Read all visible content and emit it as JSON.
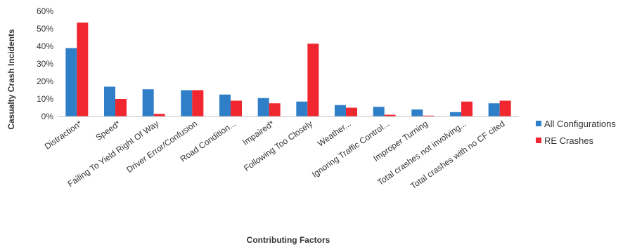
{
  "chart_data": {
    "type": "bar",
    "categories": [
      "Distraction*",
      "Speed*",
      "Failing To Yield Right Of Way",
      "Driver Error/Confusion",
      "Road Condition...",
      "Impaired*",
      "Following Too Closely",
      "Weather...",
      "Ignoring Traffic Control...",
      "Improper Turning",
      "Total crashes not involving...",
      "Total crashes with no CF cited"
    ],
    "series": [
      {
        "name": "All Configurations",
        "color": "#2f7fc8",
        "values": [
          39,
          17,
          15.5,
          15,
          12.5,
          10.5,
          8.5,
          6.5,
          5.5,
          4,
          2.5,
          7.5
        ]
      },
      {
        "name": "RE Crashes",
        "color": "#f0272f",
        "values": [
          53.5,
          10,
          1.5,
          15,
          9,
          7.5,
          41.5,
          5,
          1,
          0.5,
          8.5,
          9
        ]
      }
    ],
    "yticks": [
      "0%",
      "10%",
      "20%",
      "30%",
      "40%",
      "50%",
      "60%"
    ],
    "ylim": [
      0,
      60
    ],
    "xlabel": "Contributing Factors",
    "ylabel": "Casualty Crash Incidents",
    "legend_position": "right",
    "grid": false
  }
}
